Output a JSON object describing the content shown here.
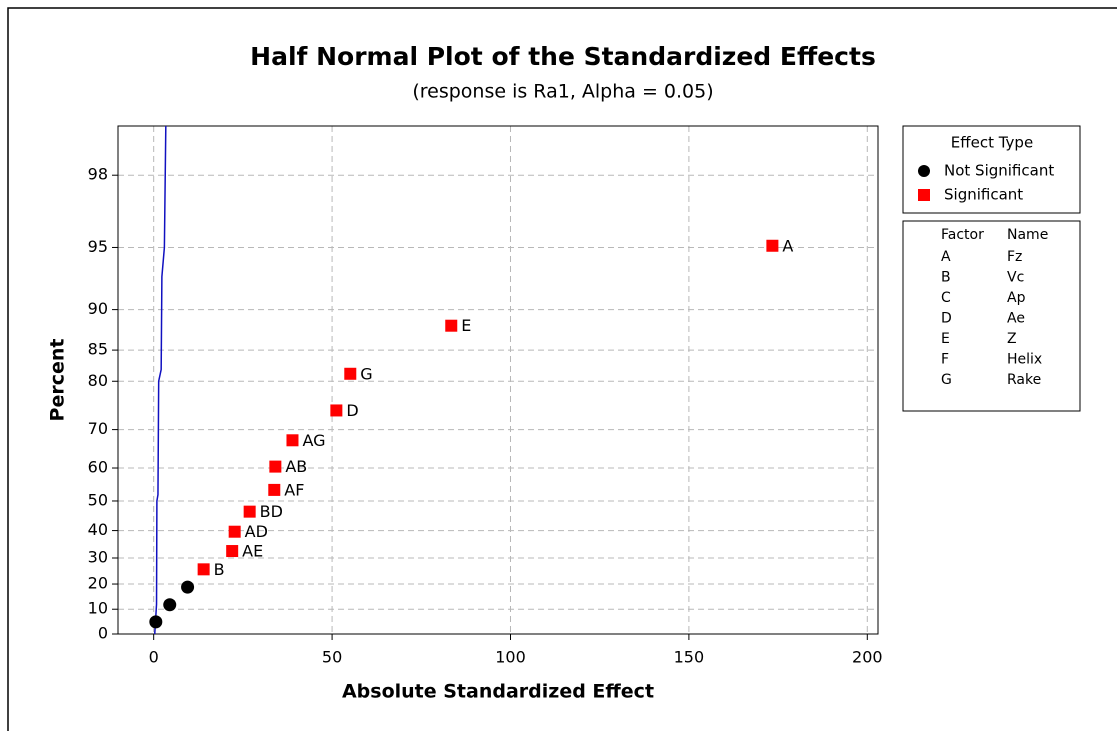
{
  "chart_data": {
    "type": "scatter",
    "title": "Half Normal Plot of the Standardized Effects",
    "subtitle": "(response is Ra1, Alpha = 0.05)",
    "xlabel": "Absolute Standardized Effect",
    "ylabel": "Percent",
    "scale": "half-normal",
    "grid": true,
    "xlim": [
      -10,
      203
    ],
    "xticks": [
      0,
      50,
      100,
      150,
      200
    ],
    "ylim": [
      0,
      99
    ],
    "yticks": [
      0,
      10,
      20,
      30,
      40,
      50,
      60,
      70,
      80,
      85,
      90,
      95,
      98
    ],
    "legend_title": "Effect Type",
    "series": [
      {
        "name": "Not Significant",
        "color": "#000000",
        "marker": "circle",
        "x": [
          0.6,
          4.5,
          9.5
        ],
        "values": [
          4.9,
          11.8,
          18.8
        ]
      },
      {
        "name": "Significant",
        "color": "#ff0000",
        "marker": "square",
        "x": [
          14,
          22,
          22.7,
          26.9,
          33.8,
          34.1,
          38.9,
          51.2,
          55.1,
          83.4,
          173.4
        ],
        "values": [
          25.7,
          32.6,
          39.6,
          46.5,
          53.5,
          60.4,
          67.4,
          74.3,
          81.3,
          88.2,
          95.1
        ],
        "point_labels": [
          "B",
          "AE",
          "AD",
          "BD",
          "AF",
          "AB",
          "AG",
          "D",
          "G",
          "E",
          "A"
        ]
      }
    ],
    "reference_line": {
      "color": "#1010c0",
      "x": [
        0.3,
        0.8,
        0.9,
        1.2,
        1.4,
        2.1,
        2.3,
        3.0,
        3.4
      ],
      "values": [
        0,
        12,
        50,
        52,
        80,
        82,
        93,
        95,
        99
      ]
    },
    "factor_table": {
      "headers": [
        "Factor",
        "Name"
      ],
      "rows": [
        [
          "A",
          "Fz"
        ],
        [
          "B",
          "Vc"
        ],
        [
          "C",
          "Ap"
        ],
        [
          "D",
          "Ae"
        ],
        [
          "E",
          "Z"
        ],
        [
          "F",
          "Helix"
        ],
        [
          "G",
          "Rake"
        ]
      ]
    }
  }
}
